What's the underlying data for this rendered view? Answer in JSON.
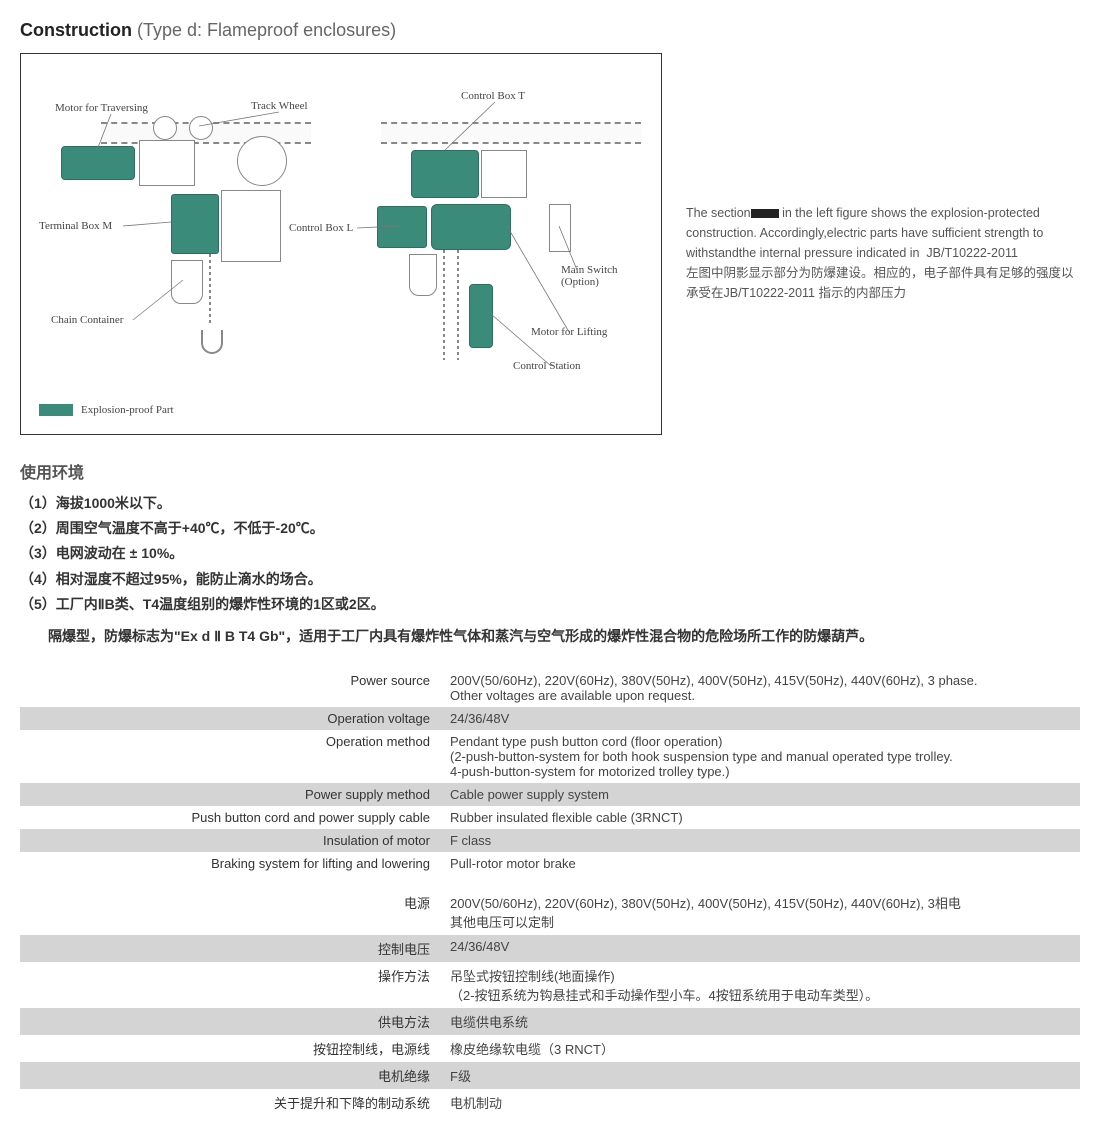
{
  "heading": {
    "bold": "Construction",
    "light": " (Type d: Flameproof enclosures)"
  },
  "diagram": {
    "labels": {
      "motor_trav": "Motor for Traversing",
      "track_wheel": "Track Wheel",
      "terminal_box_m": "Terminal Box M",
      "control_box_l": "Control Box L",
      "chain_container": "Chain Container",
      "control_box_t": "Control Box T",
      "main_switch": "Main Switch (Option)",
      "motor_lift": "Motor for Lifting",
      "control_station": "Control Station",
      "legend": "Explosion-proof Part"
    }
  },
  "side": {
    "en": "The section ▮ in the left figure shows the explosion-protected construction. Accordingly,electric parts have sufficient strength to withstandthe internal pressure indicated in  JB/T10222-2011",
    "zh": "左图中阴影显示部分为防爆建设。相应的，电子部件具有足够的强度以承受在JB/T10222-2011 指示的内部压力"
  },
  "env": {
    "title": "使用环境",
    "items": [
      "（1）海拔1000米以下。",
      "（2）周围空气温度不高于+40℃，不低于-20℃。",
      "（3）电网波动在 ± 10%。",
      "（4）相对湿度不超过95%，能防止滴水的场合。",
      "（5）工厂内ⅡB类、T4温度组别的爆炸性环境的1区或2区。"
    ],
    "desc": "　　隔爆型，防爆标志为\"Ex d Ⅱ B T4 Gb\"，适用于工厂内具有爆炸性气体和蒸汽与空气形成的爆炸性混合物的危险场所工作的防爆葫芦。"
  },
  "table_en": [
    {
      "k": "Power source",
      "v": "200V(50/60Hz), 220V(60Hz), 380V(50Hz), 400V(50Hz), 415V(50Hz), 440V(60Hz), 3 phase.\nOther voltages are available upon request."
    },
    {
      "k": "Operation voltage",
      "v": "24/36/48V"
    },
    {
      "k": "Operation method",
      "v": "Pendant type push button cord (floor operation)\n(2-push-button-system for both hook suspension type and manual operated type trolley.\n4-push-button-system for motorized trolley type.)"
    },
    {
      "k": "Power supply method",
      "v": "Cable power supply system"
    },
    {
      "k": "Push button cord and power supply cable",
      "v": "Rubber insulated flexible cable (3RNCT)"
    },
    {
      "k": "Insulation of motor",
      "v": "F class"
    },
    {
      "k": "Braking system for lifting and lowering",
      "v": "Pull-rotor motor brake"
    }
  ],
  "table_zh": [
    {
      "k": "电源",
      "v": "200V(50/60Hz), 220V(60Hz), 380V(50Hz), 400V(50Hz), 415V(50Hz), 440V(60Hz), 3相电\n其他电压可以定制"
    },
    {
      "k": "控制电压",
      "v": "24/36/48V"
    },
    {
      "k": "操作方法",
      "v": "吊坠式按钮控制线(地面操作)\n（2-按钮系统为钩悬挂式和手动操作型小车。4按钮系统用于电动车类型）。"
    },
    {
      "k": "供电方法",
      "v": "电缆供电系统"
    },
    {
      "k": "按钮控制线，电源线",
      "v": "橡皮绝缘软电缆（3 RNCT）"
    },
    {
      "k": "电机绝缘",
      "v": "F级"
    },
    {
      "k": "关于提升和下降的制动系统",
      "v": "电机制动"
    }
  ],
  "colors": {
    "teal": "#3a8b7a",
    "band": "#d4d4d4"
  }
}
